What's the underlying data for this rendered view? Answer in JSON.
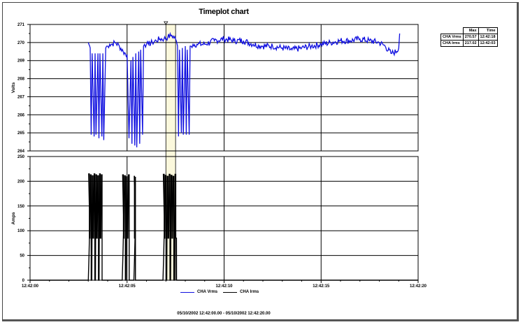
{
  "chart_data": {
    "type": "line",
    "title": "Timeplot chart",
    "x_range_text": "05/10/2002 12:42:00.00 - 05/10/2002 12:42:20.00",
    "x_ticks": [
      "12:42:00",
      "12:42:05",
      "12:42:10",
      "12:42:15",
      "12:42:20"
    ],
    "xlim": [
      "12:42:00",
      "12:42:20"
    ],
    "grid": true,
    "cursor_time": "12:42:05",
    "highlight_region": {
      "start_s": 7.0,
      "end_s": 7.5
    },
    "panels": [
      {
        "name": "voltage",
        "ylabel": "Volts",
        "ylim": [
          264,
          271
        ],
        "y_ticks": [
          "271",
          "270",
          "269",
          "268",
          "267",
          "266",
          "265",
          "264"
        ],
        "series": [
          {
            "name": "CHA Vrms",
            "color": "#1010e0",
            "x_seconds": [
              3.0,
              3.1,
              3.15,
              3.2,
              3.3,
              3.35,
              3.4,
              3.5,
              3.55,
              3.6,
              3.7,
              3.75,
              3.8,
              3.9,
              3.95,
              4.0,
              4.1,
              4.2,
              4.4,
              4.6,
              4.8,
              5.0,
              5.1,
              5.2,
              5.25,
              5.3,
              5.4,
              5.45,
              5.5,
              5.6,
              5.65,
              5.7,
              5.8,
              5.85,
              5.9,
              6.0,
              6.1,
              6.3,
              6.5,
              6.7,
              6.9,
              7.1,
              7.3,
              7.5,
              7.6,
              7.65,
              7.7,
              7.8,
              7.85,
              7.9,
              8.0,
              8.05,
              8.1,
              8.2,
              8.25,
              8.3,
              8.4,
              8.6,
              9.0,
              9.5,
              10.0,
              10.5,
              11.0,
              11.5,
              12.0,
              12.5,
              13.0,
              13.5,
              14.0,
              14.5,
              15.0,
              15.5,
              16.0,
              16.5,
              17.0,
              17.5,
              18.0,
              18.3,
              18.6,
              18.9,
              19.0,
              19.05
            ],
            "values": [
              270.0,
              269.7,
              264.9,
              269.4,
              264.8,
              269.4,
              264.9,
              269.4,
              264.7,
              269.4,
              264.8,
              269.4,
              264.6,
              269.7,
              269.8,
              269.8,
              269.9,
              269.9,
              270.0,
              269.8,
              269.5,
              269.3,
              264.7,
              269.0,
              264.4,
              269.2,
              264.3,
              269.4,
              264.2,
              269.5,
              264.4,
              269.6,
              264.9,
              269.8,
              269.9,
              269.9,
              269.9,
              270.0,
              270.1,
              270.2,
              270.2,
              270.3,
              270.4,
              270.2,
              269.8,
              264.8,
              269.6,
              265.0,
              269.7,
              264.9,
              269.8,
              264.9,
              269.6,
              264.9,
              269.8,
              269.8,
              269.9,
              269.9,
              269.9,
              270.1,
              270.2,
              270.1,
              270.1,
              269.9,
              269.8,
              269.8,
              269.7,
              269.6,
              269.7,
              269.8,
              269.9,
              270.0,
              270.1,
              270.1,
              270.2,
              270.1,
              270.0,
              269.8,
              269.4,
              269.5,
              269.7,
              270.5
            ]
          }
        ]
      },
      {
        "name": "current",
        "ylabel": "Amps",
        "ylim": [
          0,
          250
        ],
        "y_ticks": [
          "250",
          "200",
          "150",
          "100",
          "50",
          "0"
        ],
        "series": [
          {
            "name": "CHA Irms",
            "color": "#000000",
            "bursts": [
              {
                "start_s": 3.0,
                "end_s": 3.75,
                "peak": 215
              },
              {
                "start_s": 4.75,
                "end_s": 5.15,
                "peak": 213
              },
              {
                "start_s": 5.35,
                "end_s": 5.45,
                "peak": 210
              },
              {
                "start_s": 6.85,
                "end_s": 7.55,
                "peak": 214
              }
            ],
            "baseline": 0
          }
        ]
      }
    ],
    "legend": [
      {
        "label": "CHA Vrms",
        "color": "#1010e0"
      },
      {
        "label": "CHA Irms",
        "color": "#000000"
      }
    ],
    "legend_position": "bottom",
    "stats_table": {
      "headers": [
        "",
        "Max",
        "Time"
      ],
      "rows": [
        [
          "CHA Vrms",
          "270.57",
          "12:42:18"
        ],
        [
          "CHA Irms",
          "217.02",
          "12:42:03"
        ]
      ]
    }
  },
  "chart": {
    "title": "Timeplot chart",
    "range_text": "05/10/2002 12:42:00.00 - 05/10/2002 12:42:20.00",
    "legend": {
      "vrms": "CHA Vrms",
      "irms": "CHA Irms"
    },
    "stats": {
      "h_max": "Max",
      "h_time": "Time",
      "r0_name": "CHA Vrms",
      "r0_max": "270.57",
      "r0_time": "12:42:18",
      "r1_name": "CHA Irms",
      "r1_max": "217.02",
      "r1_time": "12:42:03"
    }
  }
}
